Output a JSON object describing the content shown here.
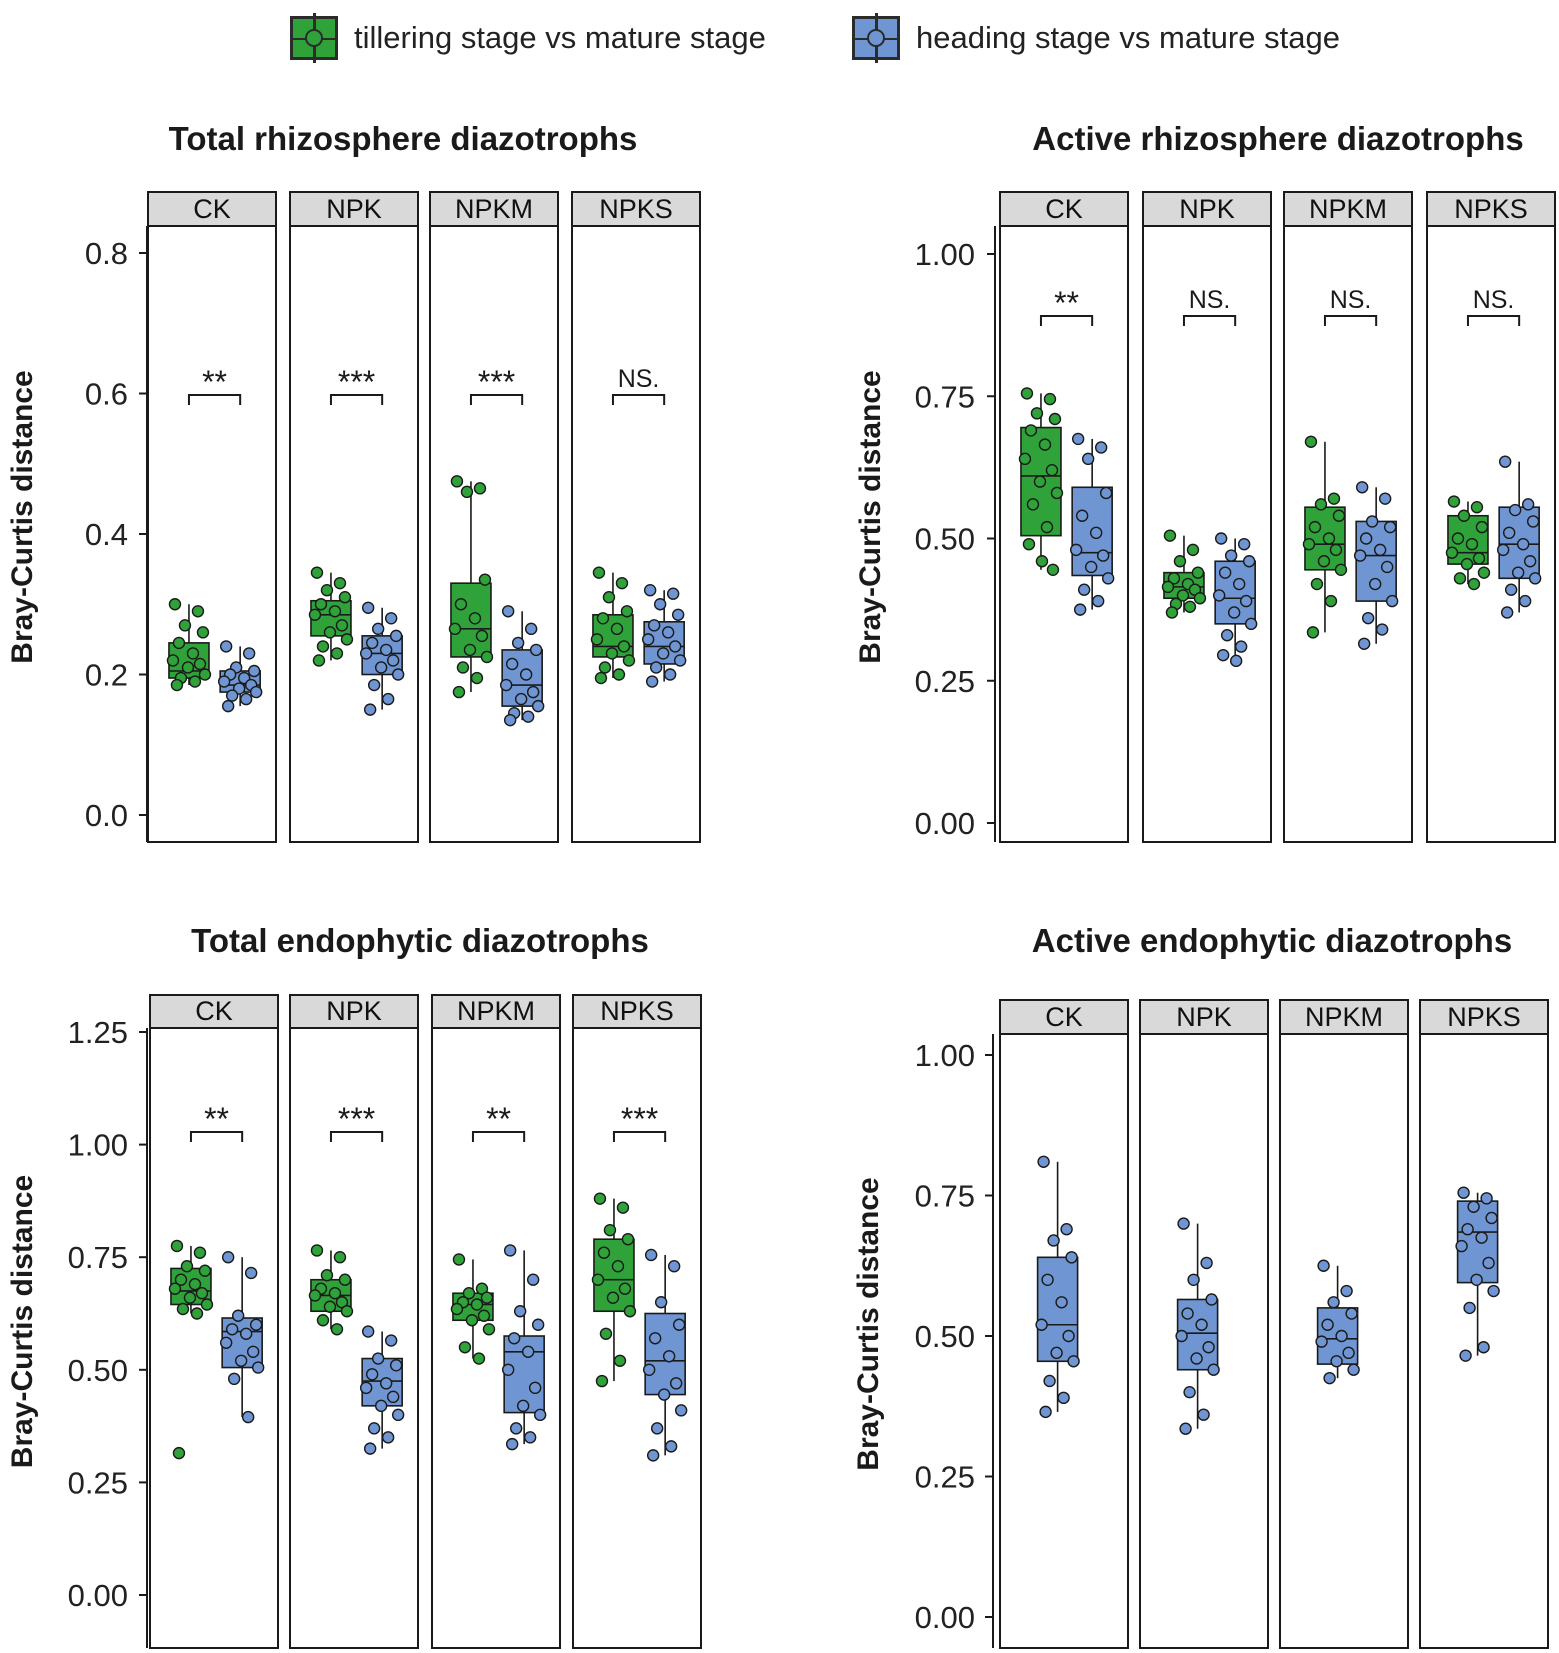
{
  "colors": {
    "tillering": "#2fa33a",
    "heading": "#6f96d3",
    "strip": "#d9d9d9",
    "ink": "#1a1a1a"
  },
  "legend": {
    "tillering": {
      "label": "tillering stage vs mature stage",
      "icon": "boxplot-green-icon"
    },
    "heading": {
      "label": "heading stage vs mature stage",
      "icon": "boxplot-blue-icon"
    }
  },
  "chart_data": [
    {
      "type": "boxplot",
      "title": "Total rhizosphere diazotrophs",
      "ylabel": "Bray-Curtis distance",
      "ylim": [
        0.0,
        0.8
      ],
      "yticks": [
        0.0,
        0.2,
        0.4,
        0.6,
        0.8
      ],
      "tick_labels": [
        "0.0",
        "0.2",
        "0.4",
        "0.6",
        "0.8"
      ],
      "facets": [
        {
          "name": "CK",
          "significance": "**",
          "series": [
            {
              "group": "tillering",
              "min": 0.185,
              "q1": 0.195,
              "median": 0.205,
              "q3": 0.245,
              "max": 0.3,
              "points": [
                0.3,
                0.29,
                0.27,
                0.26,
                0.245,
                0.23,
                0.22,
                0.215,
                0.21,
                0.2,
                0.195,
                0.19,
                0.185
              ]
            },
            {
              "group": "heading",
              "min": 0.155,
              "q1": 0.175,
              "median": 0.185,
              "q3": 0.205,
              "max": 0.24,
              "points": [
                0.24,
                0.23,
                0.21,
                0.205,
                0.2,
                0.195,
                0.19,
                0.185,
                0.18,
                0.175,
                0.17,
                0.165,
                0.155
              ]
            }
          ]
        },
        {
          "name": "NPK",
          "significance": "***",
          "series": [
            {
              "group": "tillering",
              "min": 0.22,
              "q1": 0.255,
              "median": 0.285,
              "q3": 0.305,
              "max": 0.345,
              "points": [
                0.345,
                0.33,
                0.32,
                0.31,
                0.3,
                0.29,
                0.285,
                0.27,
                0.26,
                0.25,
                0.24,
                0.23,
                0.22
              ]
            },
            {
              "group": "heading",
              "min": 0.15,
              "q1": 0.2,
              "median": 0.23,
              "q3": 0.255,
              "max": 0.295,
              "points": [
                0.295,
                0.28,
                0.265,
                0.255,
                0.245,
                0.235,
                0.23,
                0.22,
                0.21,
                0.2,
                0.185,
                0.165,
                0.15
              ]
            }
          ]
        },
        {
          "name": "NPKM",
          "significance": "***",
          "series": [
            {
              "group": "tillering",
              "min": 0.175,
              "q1": 0.225,
              "median": 0.265,
              "q3": 0.33,
              "max": 0.475,
              "points": [
                0.475,
                0.465,
                0.46,
                0.335,
                0.3,
                0.28,
                0.265,
                0.255,
                0.235,
                0.225,
                0.21,
                0.195,
                0.175
              ]
            },
            {
              "group": "heading",
              "min": 0.135,
              "q1": 0.155,
              "median": 0.185,
              "q3": 0.235,
              "max": 0.29,
              "points": [
                0.29,
                0.265,
                0.245,
                0.235,
                0.215,
                0.2,
                0.185,
                0.175,
                0.165,
                0.155,
                0.145,
                0.14,
                0.135
              ]
            }
          ]
        },
        {
          "name": "NPKS",
          "significance": "NS.",
          "series": [
            {
              "group": "tillering",
              "min": 0.195,
              "q1": 0.225,
              "median": 0.24,
              "q3": 0.285,
              "max": 0.345,
              "points": [
                0.345,
                0.33,
                0.31,
                0.29,
                0.28,
                0.265,
                0.25,
                0.24,
                0.23,
                0.22,
                0.21,
                0.2,
                0.195
              ]
            },
            {
              "group": "heading",
              "min": 0.19,
              "q1": 0.215,
              "median": 0.24,
              "q3": 0.275,
              "max": 0.32,
              "points": [
                0.32,
                0.315,
                0.3,
                0.285,
                0.27,
                0.26,
                0.25,
                0.24,
                0.23,
                0.22,
                0.21,
                0.2,
                0.19
              ]
            }
          ]
        }
      ]
    },
    {
      "type": "boxplot",
      "title": "Active rhizosphere diazotrophs",
      "ylabel": "Bray-Curtis distance",
      "ylim": [
        0.0,
        1.0
      ],
      "yticks": [
        0.0,
        0.25,
        0.5,
        0.75,
        1.0
      ],
      "tick_labels": [
        "0.00",
        "0.25",
        "0.50",
        "0.75",
        "1.00"
      ],
      "facets": [
        {
          "name": "CK",
          "significance": "**",
          "series": [
            {
              "group": "tillering",
              "min": 0.445,
              "q1": 0.505,
              "median": 0.61,
              "q3": 0.695,
              "max": 0.755,
              "points": [
                0.755,
                0.745,
                0.72,
                0.71,
                0.69,
                0.665,
                0.64,
                0.62,
                0.6,
                0.58,
                0.56,
                0.52,
                0.49,
                0.46,
                0.445
              ]
            },
            {
              "group": "heading",
              "min": 0.375,
              "q1": 0.435,
              "median": 0.475,
              "q3": 0.59,
              "max": 0.675,
              "points": [
                0.675,
                0.66,
                0.64,
                0.58,
                0.54,
                0.51,
                0.48,
                0.47,
                0.45,
                0.43,
                0.41,
                0.39,
                0.375
              ]
            }
          ]
        },
        {
          "name": "NPK",
          "significance": "NS.",
          "series": [
            {
              "group": "tillering",
              "min": 0.37,
              "q1": 0.395,
              "median": 0.415,
              "q3": 0.44,
              "max": 0.505,
              "points": [
                0.505,
                0.48,
                0.46,
                0.44,
                0.43,
                0.42,
                0.415,
                0.41,
                0.4,
                0.395,
                0.385,
                0.38,
                0.37
              ]
            },
            {
              "group": "heading",
              "min": 0.285,
              "q1": 0.35,
              "median": 0.395,
              "q3": 0.46,
              "max": 0.5,
              "points": [
                0.5,
                0.49,
                0.47,
                0.46,
                0.44,
                0.42,
                0.4,
                0.39,
                0.37,
                0.35,
                0.33,
                0.31,
                0.295,
                0.285
              ]
            }
          ]
        },
        {
          "name": "NPKM",
          "significance": "NS.",
          "series": [
            {
              "group": "tillering",
              "min": 0.335,
              "q1": 0.445,
              "median": 0.49,
              "q3": 0.555,
              "max": 0.67,
              "points": [
                0.67,
                0.57,
                0.56,
                0.54,
                0.52,
                0.5,
                0.49,
                0.48,
                0.46,
                0.445,
                0.42,
                0.39,
                0.335
              ]
            },
            {
              "group": "heading",
              "min": 0.315,
              "q1": 0.39,
              "median": 0.47,
              "q3": 0.53,
              "max": 0.59,
              "points": [
                0.59,
                0.57,
                0.53,
                0.52,
                0.5,
                0.48,
                0.47,
                0.45,
                0.42,
                0.39,
                0.36,
                0.34,
                0.315
              ]
            }
          ]
        },
        {
          "name": "NPKS",
          "significance": "NS.",
          "series": [
            {
              "group": "tillering",
              "min": 0.42,
              "q1": 0.455,
              "median": 0.475,
              "q3": 0.54,
              "max": 0.565,
              "points": [
                0.565,
                0.555,
                0.54,
                0.52,
                0.5,
                0.49,
                0.475,
                0.465,
                0.455,
                0.44,
                0.43,
                0.42
              ]
            },
            {
              "group": "heading",
              "min": 0.37,
              "q1": 0.43,
              "median": 0.49,
              "q3": 0.555,
              "max": 0.635,
              "points": [
                0.635,
                0.56,
                0.55,
                0.53,
                0.51,
                0.49,
                0.48,
                0.46,
                0.44,
                0.43,
                0.41,
                0.39,
                0.37
              ]
            }
          ]
        }
      ]
    },
    {
      "type": "boxplot",
      "title": "Total endophytic diazotrophs",
      "ylabel": "Bray-Curtis distance",
      "ylim": [
        0.0,
        1.25
      ],
      "yticks": [
        0.0,
        0.25,
        0.5,
        0.75,
        1.0,
        1.25
      ],
      "tick_labels": [
        "0.00",
        "0.25",
        "0.50",
        "0.75",
        "1.00",
        "1.25"
      ],
      "facets": [
        {
          "name": "CK",
          "significance": "**",
          "series": [
            {
              "group": "tillering",
              "min": 0.625,
              "q1": 0.645,
              "median": 0.675,
              "q3": 0.725,
              "max": 0.775,
              "points": [
                0.775,
                0.76,
                0.73,
                0.72,
                0.7,
                0.69,
                0.68,
                0.67,
                0.66,
                0.645,
                0.635,
                0.625,
                0.315
              ]
            },
            {
              "group": "heading",
              "min": 0.395,
              "q1": 0.505,
              "median": 0.585,
              "q3": 0.615,
              "max": 0.75,
              "points": [
                0.75,
                0.715,
                0.62,
                0.6,
                0.59,
                0.58,
                0.56,
                0.54,
                0.52,
                0.505,
                0.48,
                0.395
              ]
            }
          ]
        },
        {
          "name": "NPK",
          "significance": "***",
          "series": [
            {
              "group": "tillering",
              "min": 0.59,
              "q1": 0.63,
              "median": 0.665,
              "q3": 0.7,
              "max": 0.765,
              "points": [
                0.765,
                0.75,
                0.71,
                0.7,
                0.68,
                0.67,
                0.665,
                0.65,
                0.64,
                0.63,
                0.61,
                0.59
              ]
            },
            {
              "group": "heading",
              "min": 0.325,
              "q1": 0.42,
              "median": 0.475,
              "q3": 0.525,
              "max": 0.585,
              "points": [
                0.585,
                0.565,
                0.525,
                0.51,
                0.49,
                0.47,
                0.46,
                0.44,
                0.42,
                0.4,
                0.37,
                0.35,
                0.325
              ]
            }
          ]
        },
        {
          "name": "NPKM",
          "significance": "**",
          "series": [
            {
              "group": "tillering",
              "min": 0.525,
              "q1": 0.61,
              "median": 0.645,
              "q3": 0.67,
              "max": 0.745,
              "points": [
                0.745,
                0.68,
                0.67,
                0.66,
                0.65,
                0.645,
                0.635,
                0.62,
                0.61,
                0.59,
                0.55,
                0.525
              ]
            },
            {
              "group": "heading",
              "min": 0.335,
              "q1": 0.405,
              "median": 0.54,
              "q3": 0.575,
              "max": 0.765,
              "points": [
                0.765,
                0.7,
                0.63,
                0.6,
                0.57,
                0.54,
                0.5,
                0.46,
                0.42,
                0.4,
                0.37,
                0.35,
                0.335
              ]
            }
          ]
        },
        {
          "name": "NPKS",
          "significance": "***",
          "series": [
            {
              "group": "tillering",
              "min": 0.475,
              "q1": 0.63,
              "median": 0.7,
              "q3": 0.79,
              "max": 0.88,
              "points": [
                0.88,
                0.86,
                0.81,
                0.79,
                0.76,
                0.73,
                0.7,
                0.68,
                0.66,
                0.63,
                0.58,
                0.52,
                0.475
              ]
            },
            {
              "group": "heading",
              "min": 0.31,
              "q1": 0.445,
              "median": 0.52,
              "q3": 0.625,
              "max": 0.755,
              "points": [
                0.755,
                0.73,
                0.65,
                0.6,
                0.57,
                0.53,
                0.5,
                0.47,
                0.445,
                0.41,
                0.37,
                0.33,
                0.31
              ]
            }
          ]
        }
      ]
    },
    {
      "type": "boxplot",
      "title": "Active endophytic diazotrophs",
      "ylabel": "Bray-Curtis distance",
      "ylim": [
        0.0,
        1.0
      ],
      "yticks": [
        0.0,
        0.25,
        0.5,
        0.75,
        1.0
      ],
      "tick_labels": [
        "0.00",
        "0.25",
        "0.50",
        "0.75",
        "1.00"
      ],
      "facets": [
        {
          "name": "CK",
          "significance": "",
          "series": [
            {
              "group": "heading",
              "min": 0.365,
              "q1": 0.455,
              "median": 0.52,
              "q3": 0.64,
              "max": 0.81,
              "points": [
                0.81,
                0.69,
                0.67,
                0.64,
                0.6,
                0.56,
                0.52,
                0.5,
                0.47,
                0.455,
                0.42,
                0.39,
                0.365
              ]
            }
          ]
        },
        {
          "name": "NPK",
          "significance": "",
          "series": [
            {
              "group": "heading",
              "min": 0.335,
              "q1": 0.44,
              "median": 0.505,
              "q3": 0.565,
              "max": 0.7,
              "points": [
                0.7,
                0.63,
                0.6,
                0.565,
                0.54,
                0.52,
                0.5,
                0.48,
                0.46,
                0.44,
                0.4,
                0.36,
                0.335
              ]
            }
          ]
        },
        {
          "name": "NPKM",
          "significance": "",
          "series": [
            {
              "group": "heading",
              "min": 0.425,
              "q1": 0.45,
              "median": 0.495,
              "q3": 0.55,
              "max": 0.625,
              "points": [
                0.625,
                0.58,
                0.56,
                0.54,
                0.52,
                0.5,
                0.49,
                0.47,
                0.455,
                0.44,
                0.425
              ]
            }
          ]
        },
        {
          "name": "NPKS",
          "significance": "",
          "series": [
            {
              "group": "heading",
              "min": 0.465,
              "q1": 0.595,
              "median": 0.685,
              "q3": 0.74,
              "max": 0.755,
              "points": [
                0.755,
                0.745,
                0.73,
                0.71,
                0.69,
                0.675,
                0.66,
                0.63,
                0.6,
                0.58,
                0.55,
                0.48,
                0.465
              ]
            }
          ]
        }
      ]
    }
  ]
}
